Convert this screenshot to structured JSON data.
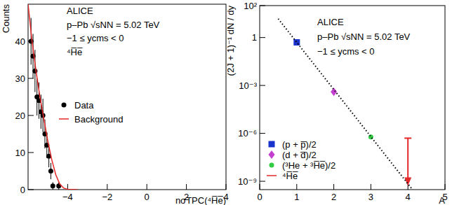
{
  "chart_data": [
    {
      "type": "scatter",
      "xlabel": "nσTPC(⁴H̅e̅)",
      "ylabel": "Counts",
      "annotations": [
        "ALICE",
        "p–Pb √sNN = 5.02 TeV",
        "−1 ≤ ycms < 0",
        "⁴H̅e̅"
      ],
      "xlim": [
        -6,
        4
      ],
      "xticks": [
        {
          "value": -4,
          "label": "−4"
        },
        {
          "value": -2,
          "label": "−2"
        },
        0,
        2,
        4
      ],
      "ylim": [
        0,
        50
      ],
      "yticks": [
        0,
        10,
        20,
        30,
        40
      ],
      "legend": "upper left",
      "series": [
        {
          "name": "Data",
          "type": "scatter",
          "color": "#000000",
          "marker": "circle",
          "x": [
            -5.85,
            -5.75,
            -5.65,
            -5.55,
            -5.45,
            -5.35,
            -5.25,
            -5.15,
            -5.05,
            -4.95,
            -4.85,
            -4.75,
            -4.45
          ],
          "values": [
            40,
            36,
            32,
            25,
            24,
            21,
            20,
            15,
            12,
            9,
            5,
            1,
            1
          ],
          "errors": [
            6.3,
            6,
            5.7,
            5,
            4.9,
            4.6,
            4.5,
            3.9,
            3.5,
            3,
            2.2,
            1,
            1
          ]
        },
        {
          "name": "Background",
          "type": "line",
          "color": "#e5282a",
          "line_style": "solid",
          "x": [
            -6,
            -5.8,
            -5.6,
            -5.4,
            -5.2,
            -5.0,
            -4.8,
            -4.6,
            -4.4,
            -4.2,
            -4.0,
            -3.5
          ],
          "values": [
            50,
            40,
            32,
            25,
            19,
            13,
            8,
            4,
            1.5,
            0.4,
            0.1,
            0
          ]
        }
      ]
    },
    {
      "type": "scatter",
      "log": "y",
      "xlabel": "A",
      "ylabel": "(2J + 1)⁻¹ dN / dy",
      "annotations": [
        "ALICE",
        "p–Pb √sNN = 5.02 TeV",
        "−1 ≤ ycms < 0"
      ],
      "xlim": [
        0,
        5
      ],
      "xticks": [
        0,
        1,
        2,
        3,
        4,
        5
      ],
      "ylim": [
        3e-10,
        100
      ],
      "yticks": [
        {
          "value": 1e-09,
          "label": "10⁻⁹"
        },
        {
          "value": 1e-06,
          "label": "10⁻⁶"
        },
        {
          "value": 0.001,
          "label": "10⁻³"
        },
        1,
        {
          "value": 100,
          "label": "10²"
        }
      ],
      "legend": "lower left",
      "series": [
        {
          "name": "(p + p̅)/2",
          "type": "scatter",
          "color": "#1a33cc",
          "marker": "square",
          "x": [
            1
          ],
          "values": [
            0.5
          ]
        },
        {
          "name": "(d + d̅)/2",
          "type": "scatter",
          "color": "#c23fcf",
          "marker": "diamond",
          "x": [
            2
          ],
          "values": [
            0.0004
          ]
        },
        {
          "name": "(³He + ³H̅e̅)/2",
          "type": "scatter",
          "color": "#33cc44",
          "marker": "circle",
          "x": [
            3
          ],
          "values": [
            6e-07
          ]
        },
        {
          "name": "⁴H̅e̅",
          "type": "scatter",
          "color": "#e5282a",
          "marker": "arrow",
          "x": [
            4
          ],
          "values": [
            5e-07
          ]
        },
        {
          "type": "line",
          "color": "#000000",
          "line_style": "dotted",
          "x": [
            0.5,
            4.1
          ],
          "values": [
            15,
            3.5e-10
          ]
        }
      ]
    }
  ]
}
